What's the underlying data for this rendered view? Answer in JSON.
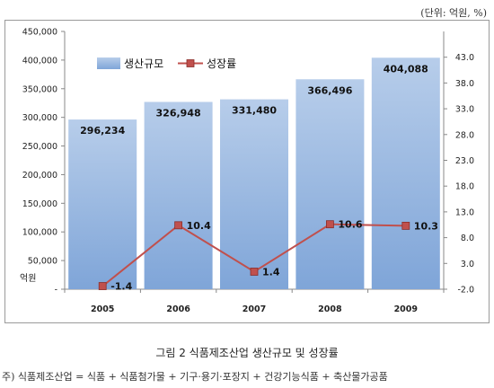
{
  "unit_label": "(단위: 억원, %)",
  "caption": "그림 2  식품제조산업 생산규모 및 성장률",
  "note": "주) 식품제조산업 = 식품 + 식품첨가물 + 기구·용기·포장지 + 건강기능식품 + 축산물가공품",
  "colors": {
    "bar_top": "#b7cdea",
    "bar_bottom": "#7fa5d8",
    "line": "#c0504d",
    "marker_fill": "#c0504d",
    "marker_stroke": "#8a2d2a"
  },
  "chart_data": {
    "type": "bar",
    "categories": [
      "2005",
      "2006",
      "2007",
      "2008",
      "2009"
    ],
    "series": [
      {
        "name": "생산규모",
        "kind": "bar",
        "axis": "left",
        "values": [
          296234,
          326948,
          331480,
          366496,
          404088
        ],
        "labels": [
          "296,234",
          "326,948",
          "331,480",
          "366,496",
          "404,088"
        ]
      },
      {
        "name": "성장률",
        "kind": "line",
        "axis": "right",
        "values": [
          -1.4,
          10.4,
          1.4,
          10.6,
          10.3
        ],
        "labels": [
          "-1.4",
          "10.4",
          "1.4",
          "10.6",
          "10.3"
        ]
      }
    ],
    "y_left": {
      "lim": [
        0,
        450000
      ],
      "ticks": [
        0,
        50000,
        100000,
        150000,
        200000,
        250000,
        300000,
        350000,
        400000,
        450000
      ],
      "tick_labels": [
        "-",
        "50,000",
        "100,000",
        "150,000",
        "200,000",
        "250,000",
        "300,000",
        "350,000",
        "400,000",
        "450,000"
      ],
      "label": "억원"
    },
    "y_right": {
      "lim": [
        -2.0,
        48.0
      ],
      "ticks": [
        -2.0,
        3.0,
        8.0,
        13.0,
        18.0,
        23.0,
        28.0,
        33.0,
        38.0,
        43.0
      ],
      "tick_labels": [
        "-2.0",
        "3.0",
        "8.0",
        "13.0",
        "18.0",
        "23.0",
        "28.0",
        "33.0",
        "38.0",
        "43.0"
      ]
    },
    "grid": false,
    "legend_position": "top-left"
  }
}
